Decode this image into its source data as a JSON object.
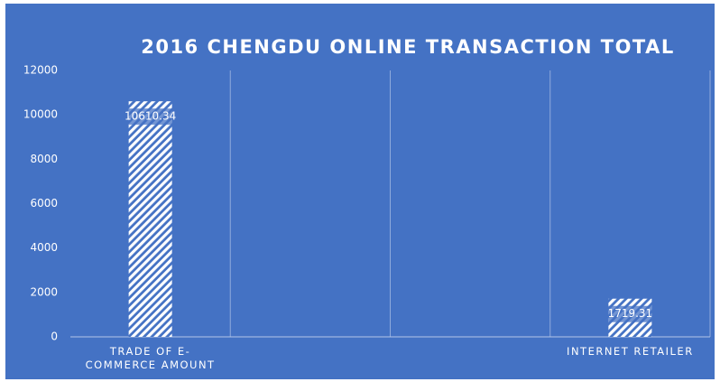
{
  "chart_data": {
    "type": "bar",
    "title": "2016 CHENGDU ONLINE TRANSACTION TOTAL",
    "categories": [
      "TRADE OF E-COMMERCE AMOUNT",
      null,
      null,
      "INTERNET RETAILER"
    ],
    "values": [
      10610.34,
      null,
      null,
      1719.31
    ],
    "color": "#ffffff",
    "ylim": [
      0,
      12000
    ],
    "yticks": [
      0,
      2000,
      4000,
      6000,
      8000,
      10000,
      12000
    ],
    "grid": false
  }
}
